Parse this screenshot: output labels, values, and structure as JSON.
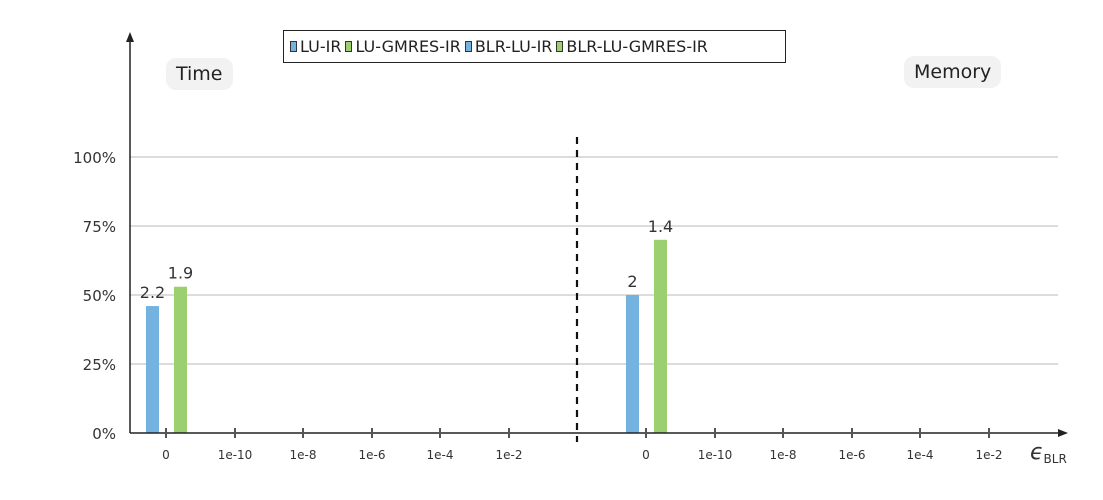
{
  "legend": {
    "items": [
      {
        "label": "LU-IR",
        "color": "#74b3e0",
        "border": "#333333"
      },
      {
        "label": "LU-GMRES-IR",
        "color": "#9ccf6f",
        "border": "#333333"
      },
      {
        "label": "BLR-LU-IR",
        "color": "#74b3e0",
        "border": "#333333"
      },
      {
        "label": "BLR-LU-GMRES-IR",
        "color": "#9ccf6f",
        "border": "#333333"
      }
    ]
  },
  "panels": {
    "left_label": "Time",
    "right_label": "Memory"
  },
  "chart_data": {
    "type": "bar",
    "xlabel": "ϵBLR",
    "xlabel_main": "ϵ",
    "xlabel_sub": "BLR",
    "ylabel": "",
    "ylim": [
      0,
      100
    ],
    "yticks": [
      "0%",
      "25%",
      "50%",
      "75%",
      "100%"
    ],
    "ytick_values": [
      0,
      25,
      50,
      75,
      100
    ],
    "grid": true,
    "categories": [
      "0",
      "1e-10",
      "1e-8",
      "1e-6",
      "1e-4",
      "1e-2"
    ],
    "groups": [
      {
        "name": "Time",
        "series": [
          {
            "name": "LU-IR",
            "values": [
              46,
              null,
              null,
              null,
              null,
              null
            ],
            "labels": [
              "2.2",
              "",
              "",
              "",
              "",
              ""
            ]
          },
          {
            "name": "LU-GMRES-IR",
            "values": [
              53,
              null,
              null,
              null,
              null,
              null
            ],
            "labels": [
              "1.9",
              "",
              "",
              "",
              "",
              ""
            ]
          }
        ]
      },
      {
        "name": "Memory",
        "series": [
          {
            "name": "LU-IR",
            "values": [
              50,
              null,
              null,
              null,
              null,
              null
            ],
            "labels": [
              "2",
              "",
              "",
              "",
              "",
              ""
            ]
          },
          {
            "name": "LU-GMRES-IR",
            "values": [
              70,
              null,
              null,
              null,
              null,
              null
            ],
            "labels": [
              "1.4",
              "",
              "",
              "",
              "",
              ""
            ]
          }
        ]
      }
    ],
    "colors": {
      "blue": "#74b3e0",
      "green": "#9ccf6f",
      "grid": "#c8c8c8",
      "axis": "#222222"
    }
  }
}
